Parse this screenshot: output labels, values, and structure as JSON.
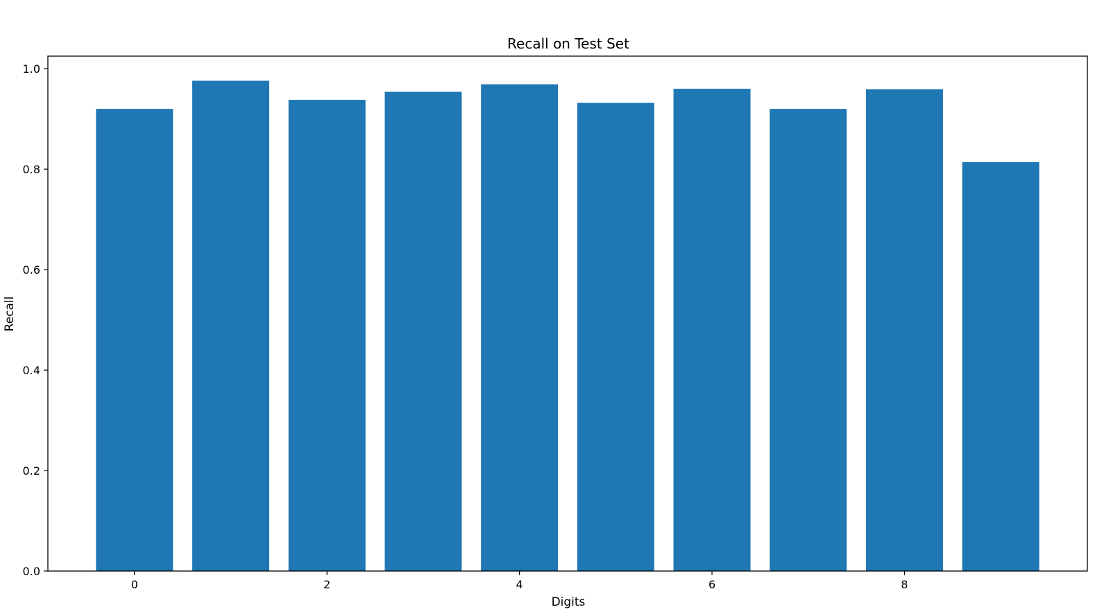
{
  "chart_data": {
    "type": "bar",
    "title": "Recall on Test Set",
    "xlabel": "Digits",
    "ylabel": "Recall",
    "categories": [
      0,
      1,
      2,
      3,
      4,
      5,
      6,
      7,
      8,
      9
    ],
    "values": [
      0.92,
      0.976,
      0.938,
      0.954,
      0.969,
      0.932,
      0.96,
      0.92,
      0.959,
      0.814
    ],
    "xlim": [
      -0.9,
      9.9
    ],
    "ylim": [
      0.0,
      1.025
    ],
    "xticks": [
      0,
      2,
      4,
      6,
      8
    ],
    "xtick_labels": [
      "0",
      "2",
      "4",
      "6",
      "8"
    ],
    "yticks": [
      0.0,
      0.2,
      0.4,
      0.6,
      0.8,
      1.0
    ],
    "ytick_labels": [
      "0.0",
      "0.2",
      "0.4",
      "0.6",
      "0.8",
      "1.0"
    ],
    "grid": false,
    "bar_color": "#1f77b4"
  }
}
